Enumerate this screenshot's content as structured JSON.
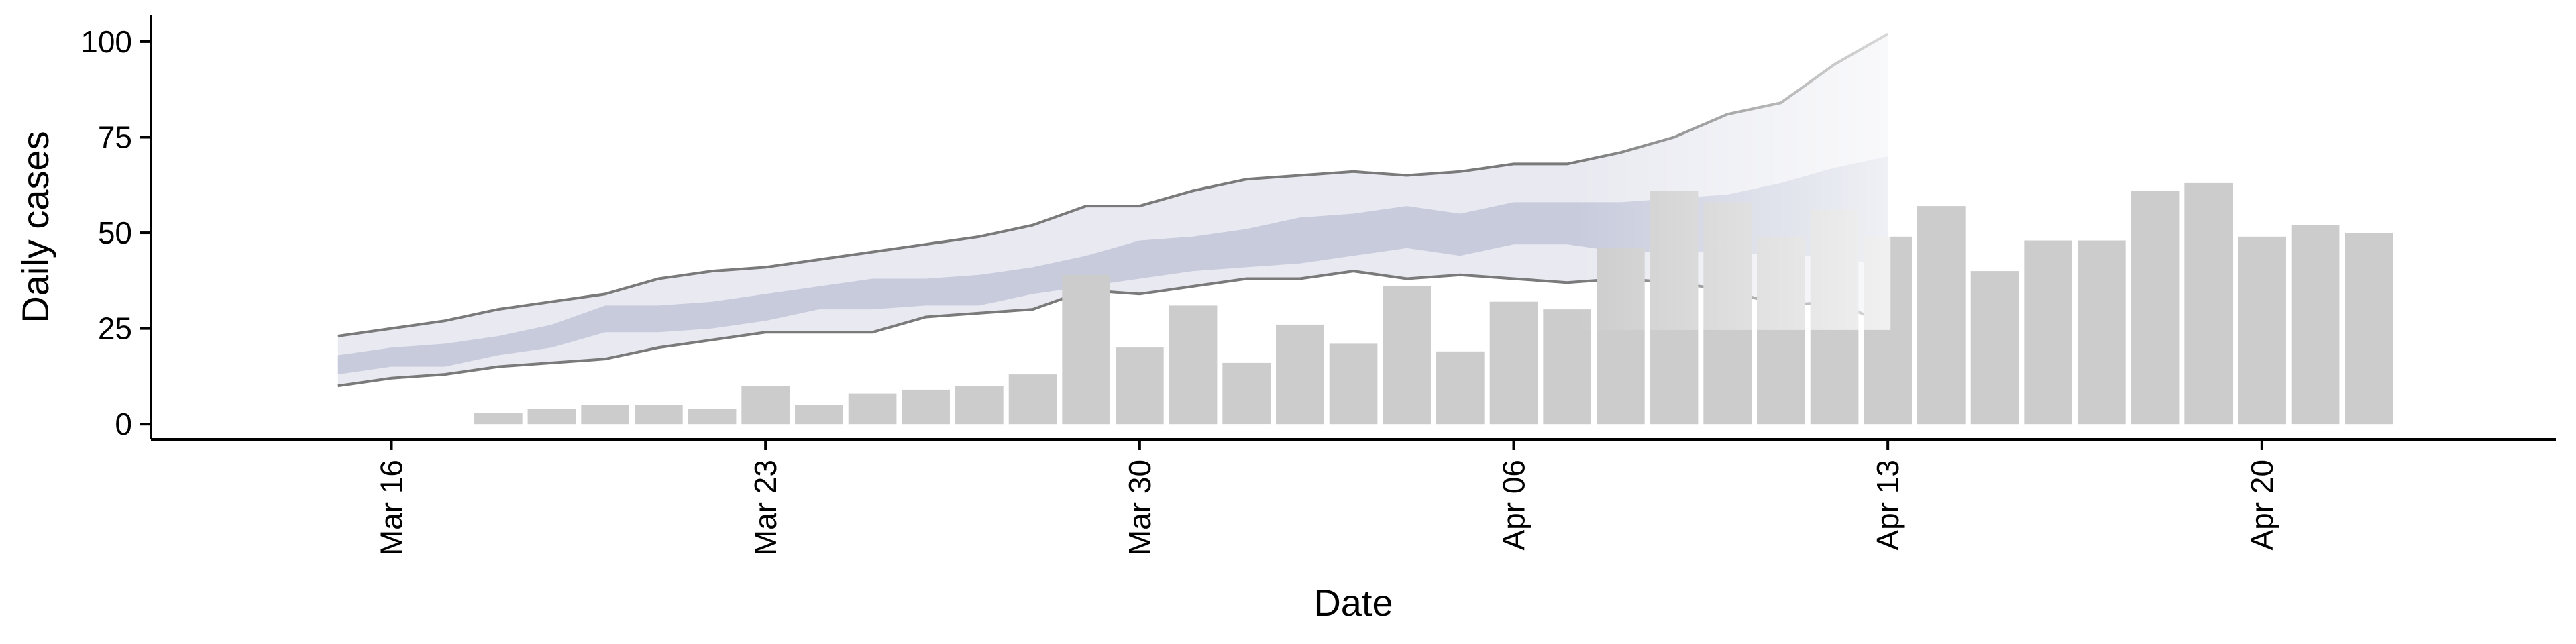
{
  "chart_data": {
    "type": "bar",
    "title": "",
    "xlabel": "Date",
    "ylabel": "Daily cases",
    "x_tick_labels": [
      "Mar 16",
      "Mar 23",
      "Mar 30",
      "Apr 06",
      "Apr 13",
      "Apr 20"
    ],
    "x_tick_dates": [
      "2020-03-16",
      "2020-03-23",
      "2020-03-30",
      "2020-04-06",
      "2020-04-13",
      "2020-04-20"
    ],
    "y_ticks": [
      0,
      25,
      50,
      75,
      100
    ],
    "ylim": [
      -4,
      107
    ],
    "xlim": [
      "2020-03-11T12:00",
      "2020-04-25T12:00"
    ],
    "grid": false,
    "colors": {
      "bars": "#cccccc",
      "band_outer": "#e9eaf1",
      "band_inner": "#c7cbdc",
      "bound_lines": "#7a7a7a",
      "axis": "#000000"
    },
    "bars": {
      "dates": [
        "2020-03-18",
        "2020-03-19",
        "2020-03-20",
        "2020-03-21",
        "2020-03-22",
        "2020-03-23",
        "2020-03-24",
        "2020-03-25",
        "2020-03-26",
        "2020-03-27",
        "2020-03-28",
        "2020-03-29",
        "2020-03-30",
        "2020-03-31",
        "2020-04-01",
        "2020-04-02",
        "2020-04-03",
        "2020-04-04",
        "2020-04-05",
        "2020-04-06",
        "2020-04-07",
        "2020-04-08",
        "2020-04-09",
        "2020-04-10",
        "2020-04-11",
        "2020-04-12",
        "2020-04-13",
        "2020-04-14",
        "2020-04-15",
        "2020-04-16",
        "2020-04-17",
        "2020-04-18",
        "2020-04-19",
        "2020-04-20",
        "2020-04-21",
        "2020-04-22"
      ],
      "values": [
        3,
        4,
        5,
        5,
        4,
        10,
        5,
        8,
        9,
        10,
        13,
        39,
        20,
        31,
        16,
        26,
        21,
        36,
        19,
        32,
        30,
        46,
        61,
        58,
        49,
        56,
        49,
        57,
        40,
        48,
        48,
        61,
        63,
        49,
        52,
        50
      ]
    },
    "band": {
      "dates": [
        "2020-03-15",
        "2020-03-16",
        "2020-03-17",
        "2020-03-18",
        "2020-03-19",
        "2020-03-20",
        "2020-03-21",
        "2020-03-22",
        "2020-03-23",
        "2020-03-24",
        "2020-03-25",
        "2020-03-26",
        "2020-03-27",
        "2020-03-28",
        "2020-03-29",
        "2020-03-30",
        "2020-03-31",
        "2020-04-01",
        "2020-04-02",
        "2020-04-03",
        "2020-04-04",
        "2020-04-05",
        "2020-04-06",
        "2020-04-07",
        "2020-04-08",
        "2020-04-09",
        "2020-04-10",
        "2020-04-11",
        "2020-04-12",
        "2020-04-13"
      ],
      "upper": [
        23,
        25,
        27,
        30,
        32,
        34,
        38,
        40,
        41,
        43,
        45,
        47,
        49,
        52,
        57,
        57,
        61,
        64,
        65,
        66,
        65,
        66,
        68,
        68,
        71,
        75,
        81,
        84,
        94,
        102
      ],
      "lower": [
        10,
        12,
        13,
        15,
        16,
        17,
        20,
        22,
        24,
        24,
        24,
        28,
        29,
        30,
        35,
        34,
        36,
        38,
        38,
        40,
        38,
        39,
        38,
        37,
        38,
        37,
        35,
        31,
        32,
        26
      ],
      "inner_upper": [
        18,
        20,
        21,
        23,
        26,
        31,
        31,
        32,
        34,
        36,
        38,
        38,
        39,
        41,
        44,
        48,
        49,
        51,
        54,
        55,
        57,
        55,
        58,
        58,
        58,
        59,
        60,
        63,
        67,
        70
      ],
      "inner_lower": [
        13,
        15,
        15,
        18,
        20,
        24,
        24,
        25,
        27,
        30,
        30,
        31,
        31,
        34,
        36,
        38,
        40,
        41,
        42,
        44,
        46,
        44,
        47,
        47,
        45,
        45,
        45,
        44,
        44,
        41
      ]
    }
  }
}
